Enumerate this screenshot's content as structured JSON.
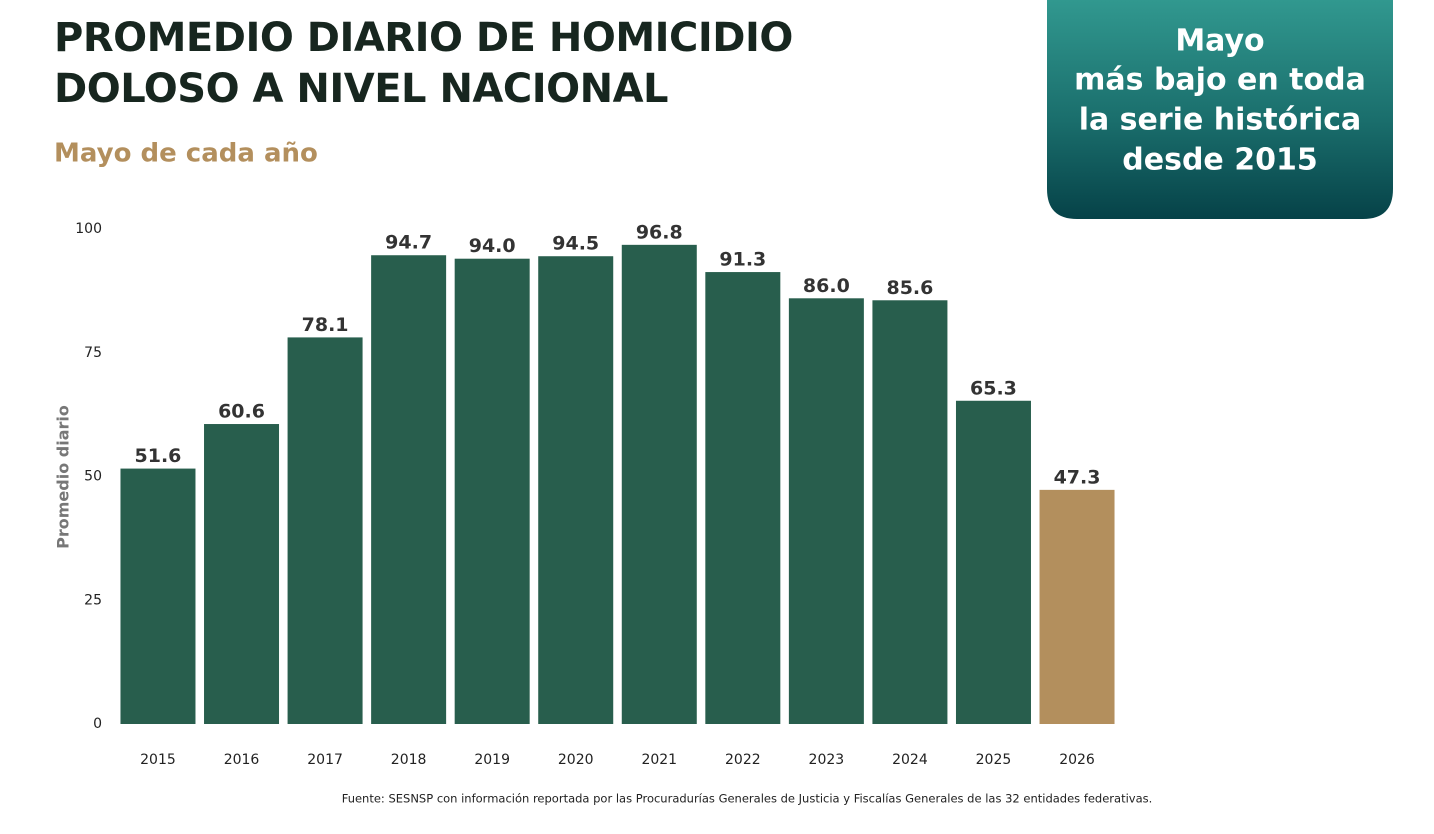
{
  "chart_data": {
    "type": "bar",
    "title": [
      "PROMEDIO DIARIO DE HOMICIDIO",
      "DOLOSO A NIVEL NACIONAL"
    ],
    "subtitle": "Mayo de cada año",
    "annotation": [
      "Mayo",
      "más bajo en toda",
      "la serie histórica",
      "desde 2015"
    ],
    "y_label": "Promedio diario",
    "categories": [
      "2015",
      "2016",
      "2017",
      "2018",
      "2019",
      "2020",
      "2021",
      "2022",
      "2023",
      "2024",
      "2025",
      "2026"
    ],
    "values": [
      51.6,
      60.6,
      78.1,
      94.7,
      94.0,
      94.5,
      96.8,
      91.3,
      86.0,
      85.6,
      65.3,
      47.3
    ],
    "value_labels": [
      "51.6",
      "60.6",
      "78.1",
      "94.7",
      "94.0",
      "94.5",
      "96.8",
      "91.3",
      "86.0",
      "85.6",
      "65.3",
      "47.3"
    ],
    "colors": [
      "#285e4d",
      "#285e4d",
      "#285e4d",
      "#285e4d",
      "#285e4d",
      "#285e4d",
      "#285e4d",
      "#285e4d",
      "#285e4d",
      "#285e4d",
      "#285e4d",
      "#b38f5d"
    ],
    "ylim": [
      0,
      100
    ],
    "yticks": [
      0,
      25,
      50,
      75,
      100
    ],
    "grid": false,
    "source": "Fuente: SESNSP con información reportada por las Procuradurías Generales de Justicia y Fiscalías Generales de las 32 entidades federativas."
  }
}
